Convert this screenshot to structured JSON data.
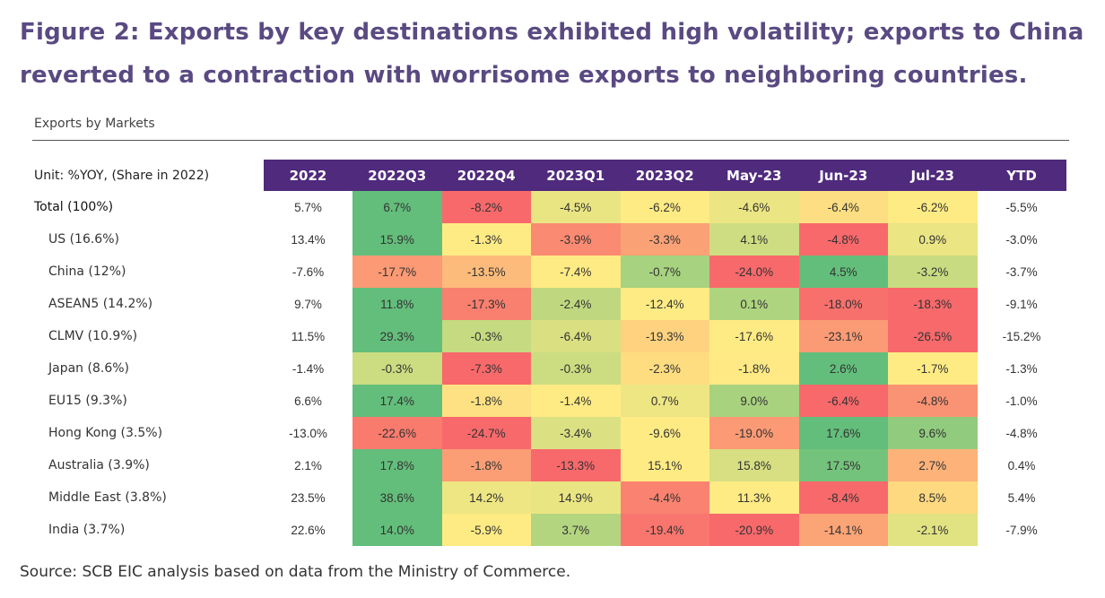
{
  "header": {
    "title": "Figure 2: Exports by key destinations exhibited high volatility; exports to China reverted to a contraction with worrisome exports to neighboring countries.",
    "subtitle": "Exports by Markets"
  },
  "footer": {
    "source": "Source: SCB EIC analysis based on data from the Ministry of Commerce."
  },
  "colors": {
    "header_bg": "#4f2a7d",
    "title": "#5a4a82",
    "scale_low": "#f8696b",
    "scale_mid": "#ffeb84",
    "scale_high": "#63be7b"
  },
  "chart_data": {
    "type": "heatmap",
    "title": "Exports by Markets",
    "unit_label": "Unit: %YOY, (Share in 2022)",
    "columns": [
      "2022",
      "2022Q3",
      "2022Q4",
      "2023Q1",
      "2023Q2",
      "May-23",
      "Jun-23",
      "Jul-23",
      "YTD"
    ],
    "heatmap_columns": [
      "2022Q3",
      "2022Q4",
      "2023Q1",
      "2023Q2",
      "May-23",
      "Jun-23",
      "Jul-23"
    ],
    "color_scale": "per-row red-yellow-green (low = red, high = green); 2022 and YTD columns uncolored",
    "rows": [
      {
        "label": "Total (100%)",
        "total": true,
        "values": [
          5.7,
          6.7,
          -8.2,
          -4.5,
          -6.2,
          -4.6,
          -6.4,
          -6.2,
          -5.5
        ]
      },
      {
        "label": "US (16.6%)",
        "values": [
          13.4,
          15.9,
          -1.3,
          -3.9,
          -3.3,
          4.1,
          -4.8,
          0.9,
          -3.0
        ]
      },
      {
        "label": "China (12%)",
        "values": [
          -7.6,
          -17.7,
          -13.5,
          -7.4,
          -0.7,
          -24.0,
          4.5,
          -3.2,
          -3.7
        ]
      },
      {
        "label": "ASEAN5 (14.2%)",
        "values": [
          9.7,
          11.8,
          -17.3,
          -2.4,
          -12.4,
          0.1,
          -18.0,
          -18.3,
          -9.1
        ]
      },
      {
        "label": "CLMV (10.9%)",
        "values": [
          11.5,
          29.3,
          -0.3,
          -6.4,
          -19.3,
          -17.6,
          -23.1,
          -26.5,
          -15.2
        ]
      },
      {
        "label": "Japan (8.6%)",
        "values": [
          -1.4,
          -0.3,
          -7.3,
          -0.3,
          -2.3,
          -1.8,
          2.6,
          -1.7,
          -1.3
        ]
      },
      {
        "label": "EU15 (9.3%)",
        "values": [
          6.6,
          17.4,
          -1.8,
          -1.4,
          0.7,
          9.0,
          -6.4,
          -4.8,
          -1.0
        ]
      },
      {
        "label": "Hong Kong  (3.5%)",
        "values": [
          -13.0,
          -22.6,
          -24.7,
          -3.4,
          -9.6,
          -19.0,
          17.6,
          9.6,
          -4.8
        ]
      },
      {
        "label": "Australia (3.9%)",
        "values": [
          2.1,
          17.8,
          -1.8,
          -13.3,
          15.1,
          15.8,
          17.5,
          2.7,
          0.4
        ]
      },
      {
        "label": "Middle East  (3.8%)",
        "values": [
          23.5,
          38.6,
          14.2,
          14.9,
          -4.4,
          11.3,
          -8.4,
          8.5,
          5.4
        ]
      },
      {
        "label": "India (3.7%)",
        "values": [
          22.6,
          14.0,
          -5.9,
          3.7,
          -19.4,
          -20.9,
          -14.1,
          -2.1,
          -7.9
        ]
      }
    ]
  }
}
